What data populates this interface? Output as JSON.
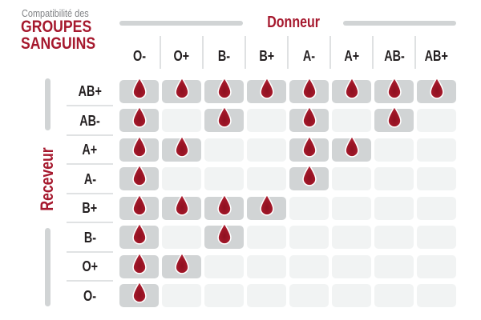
{
  "title": {
    "pretitle": "Compatibilité des",
    "line1": "GROUPES",
    "line2": "SANGUINS"
  },
  "axes": {
    "donor_label": "Donneur",
    "receiver_label": "Receveur"
  },
  "donors": [
    "O-",
    "O+",
    "B-",
    "B+",
    "A-",
    "A+",
    "AB-",
    "AB+"
  ],
  "receivers": [
    "AB+",
    "AB-",
    "A+",
    "A-",
    "B+",
    "B-",
    "O+",
    "O-"
  ],
  "icons": {
    "compatible": "blood-drop-icon"
  },
  "colors": {
    "crimson": "#A6192E",
    "drop_red_dark": "#8E1020",
    "drop_red_light": "#B02435",
    "drop_outline": "#FFFFFF",
    "cell_filled": "#D1D4D5",
    "cell_empty": "#F1F3F3",
    "axis_bar": "#D1D4D5",
    "divider": "#DFE1E2",
    "pretitle_gray": "#808285",
    "label_dark": "#231F20",
    "background": "#FFFFFF"
  },
  "chart_data": {
    "type": "heatmap",
    "title": "Compatibilité des GROUPES SANGUINS",
    "x_axis_label": "Donneur",
    "y_axis_label": "Receveur",
    "columns_donors": [
      "O-",
      "O+",
      "B-",
      "B+",
      "A-",
      "A+",
      "AB-",
      "AB+"
    ],
    "rows_receivers": [
      "AB+",
      "AB-",
      "A+",
      "A-",
      "B+",
      "B-",
      "O+",
      "O-"
    ],
    "compatibility_matrix": [
      [
        1,
        1,
        1,
        1,
        1,
        1,
        1,
        1
      ],
      [
        1,
        0,
        1,
        0,
        1,
        0,
        1,
        0
      ],
      [
        1,
        1,
        0,
        0,
        1,
        1,
        0,
        0
      ],
      [
        1,
        0,
        0,
        0,
        1,
        0,
        0,
        0
      ],
      [
        1,
        1,
        1,
        1,
        0,
        0,
        0,
        0
      ],
      [
        1,
        0,
        1,
        0,
        0,
        0,
        0,
        0
      ],
      [
        1,
        1,
        0,
        0,
        0,
        0,
        0,
        0
      ],
      [
        1,
        0,
        0,
        0,
        0,
        0,
        0,
        0
      ]
    ],
    "cell_encoding": {
      "1": "blood drop icon on gray cell (compatible)",
      "0": "empty light gray cell (not compatible)"
    }
  }
}
